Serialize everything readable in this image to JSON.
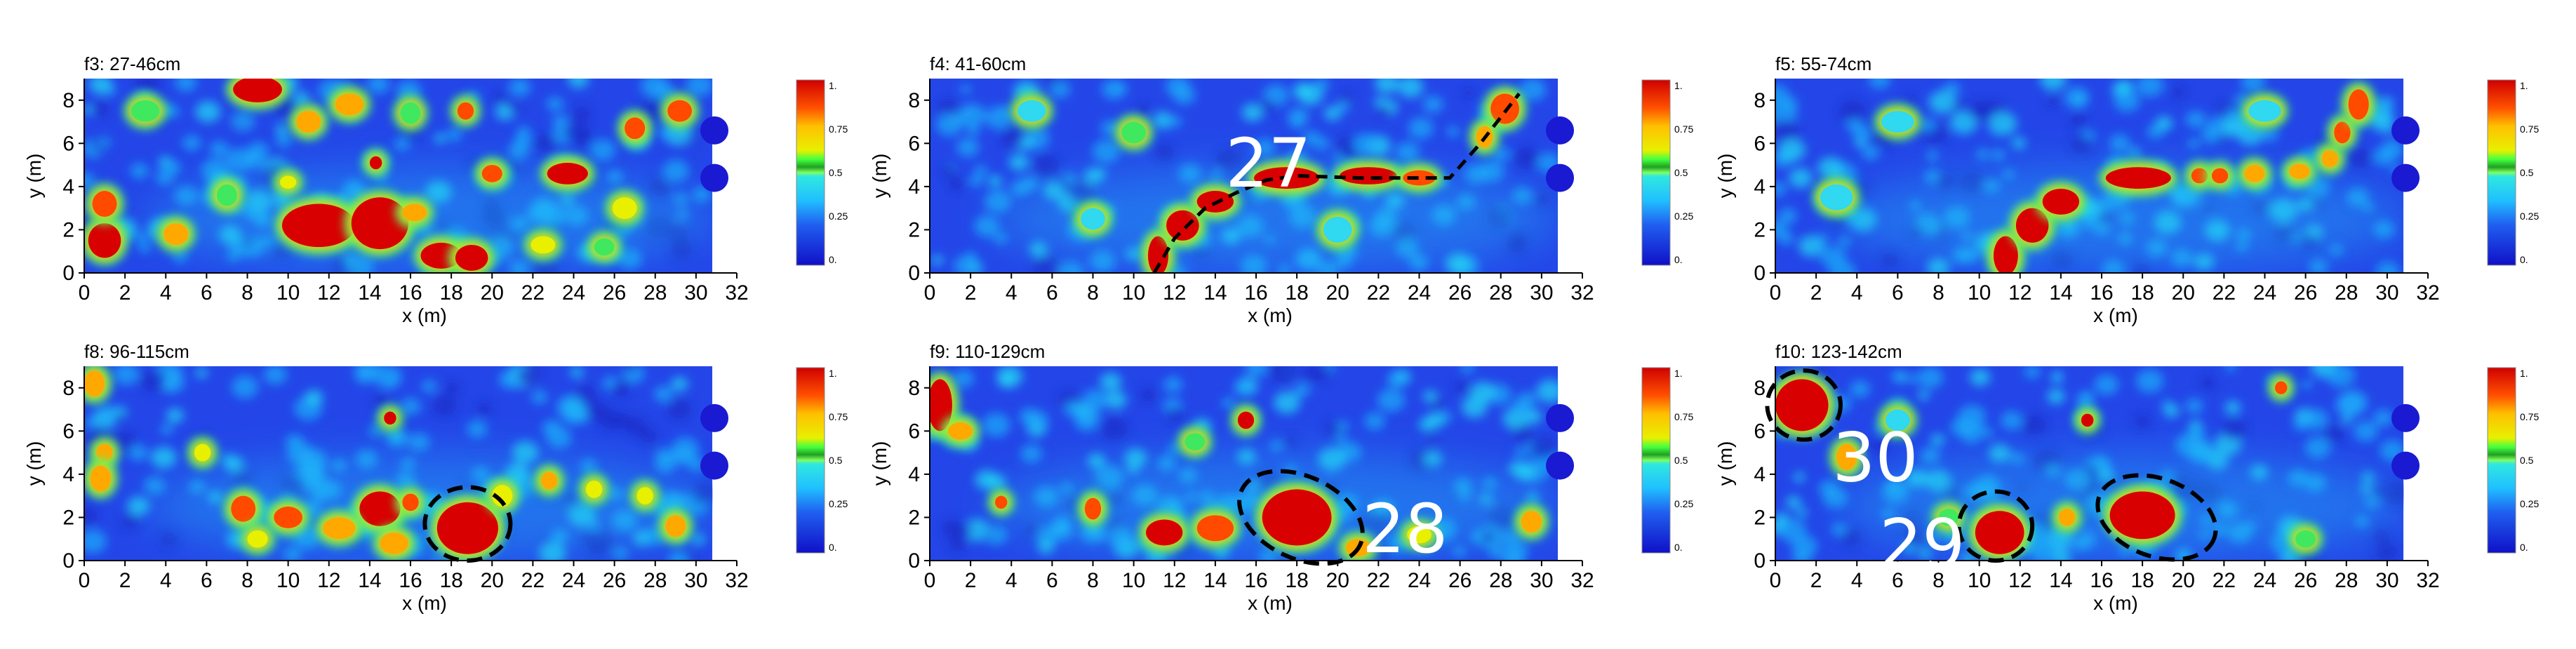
{
  "figure": {
    "panels": [
      {
        "id": "f3",
        "title": "f3: 27-46cm",
        "annotations": [],
        "ellipses": [],
        "dashed_path": [],
        "hotspots": [
          [
            1,
            1.5,
            0.8,
            0.8,
            0.9
          ],
          [
            1,
            3.2,
            0.6,
            0.6,
            0.8
          ],
          [
            4.5,
            1.8,
            0.6,
            0.5,
            0.7
          ],
          [
            8.5,
            8.5,
            1.2,
            0.6,
            0.9
          ],
          [
            11,
            7,
            0.6,
            0.5,
            0.7
          ],
          [
            11.5,
            2.2,
            1.8,
            1.0,
            0.95
          ],
          [
            14.5,
            2.3,
            1.4,
            1.2,
            0.95
          ],
          [
            13,
            7.8,
            0.7,
            0.5,
            0.75
          ],
          [
            17.5,
            0.8,
            1.0,
            0.6,
            0.9
          ],
          [
            19,
            0.7,
            0.8,
            0.6,
            0.9
          ],
          [
            18.7,
            7.5,
            0.4,
            0.4,
            0.85
          ],
          [
            20,
            4.6,
            0.5,
            0.4,
            0.85
          ],
          [
            23.7,
            4.6,
            1.0,
            0.5,
            0.95
          ],
          [
            14.3,
            5.1,
            0.3,
            0.3,
            0.9
          ],
          [
            27,
            6.7,
            0.5,
            0.5,
            0.8
          ],
          [
            29.2,
            7.5,
            0.6,
            0.5,
            0.85
          ],
          [
            16.2,
            2.8,
            0.6,
            0.4,
            0.75
          ],
          [
            10,
            4.2,
            0.4,
            0.3,
            0.6
          ],
          [
            22.5,
            1.3,
            0.6,
            0.4,
            0.6
          ],
          [
            26.5,
            3,
            0.6,
            0.5,
            0.6
          ],
          [
            7,
            3.6,
            0.5,
            0.5,
            0.55
          ],
          [
            16,
            7.4,
            0.5,
            0.5,
            0.55
          ],
          [
            3,
            7.5,
            0.7,
            0.5,
            0.5
          ],
          [
            25.5,
            1.2,
            0.5,
            0.4,
            0.55
          ]
        ]
      },
      {
        "id": "f4",
        "title": "f4: 41-60cm",
        "annotations": [
          {
            "text": "27",
            "x": 14.5,
            "y": 5.1
          }
        ],
        "ellipses": [],
        "dashed_path": [
          [
            11,
            0
          ],
          [
            12,
            1.6
          ],
          [
            13.5,
            3
          ],
          [
            15,
            3.7
          ],
          [
            16.5,
            4.3
          ],
          [
            18,
            4.5
          ],
          [
            21,
            4.4
          ],
          [
            25.5,
            4.4
          ],
          [
            27,
            6
          ],
          [
            28.9,
            8.3
          ]
        ],
        "hotspots": [
          [
            11.2,
            0.8,
            0.5,
            0.9,
            0.95
          ],
          [
            12.4,
            2.2,
            0.8,
            0.7,
            0.95
          ],
          [
            14,
            3.3,
            0.9,
            0.5,
            0.9
          ],
          [
            17.5,
            4.4,
            1.6,
            0.5,
            0.98
          ],
          [
            21.5,
            4.5,
            1.4,
            0.4,
            0.95
          ],
          [
            24,
            4.4,
            0.8,
            0.35,
            0.85
          ],
          [
            28.2,
            7.6,
            0.7,
            0.7,
            0.85
          ],
          [
            27.2,
            6.3,
            0.4,
            0.5,
            0.7
          ],
          [
            10,
            6.5,
            0.6,
            0.5,
            0.5
          ],
          [
            5,
            7.5,
            0.7,
            0.5,
            0.45
          ],
          [
            20,
            2,
            0.7,
            0.6,
            0.45
          ],
          [
            8,
            2.5,
            0.6,
            0.5,
            0.45
          ]
        ]
      },
      {
        "id": "f5",
        "title": "f5: 55-74cm",
        "annotations": [],
        "ellipses": [],
        "dashed_path": [],
        "hotspots": [
          [
            11.3,
            0.8,
            0.6,
            0.9,
            0.95
          ],
          [
            12.6,
            2.2,
            0.8,
            0.8,
            0.95
          ],
          [
            14,
            3.3,
            0.9,
            0.6,
            0.95
          ],
          [
            17.8,
            4.4,
            1.6,
            0.5,
            0.98
          ],
          [
            20.8,
            4.5,
            0.4,
            0.35,
            0.8
          ],
          [
            21.8,
            4.5,
            0.4,
            0.35,
            0.85
          ],
          [
            23.5,
            4.6,
            0.5,
            0.4,
            0.75
          ],
          [
            25.7,
            4.7,
            0.5,
            0.35,
            0.75
          ],
          [
            27.2,
            5.3,
            0.4,
            0.4,
            0.75
          ],
          [
            27.8,
            6.5,
            0.4,
            0.5,
            0.8
          ],
          [
            28.6,
            7.8,
            0.5,
            0.7,
            0.85
          ],
          [
            24,
            7.5,
            0.8,
            0.5,
            0.45
          ],
          [
            6,
            7,
            0.8,
            0.5,
            0.45
          ],
          [
            3,
            3.5,
            0.8,
            0.6,
            0.45
          ]
        ]
      },
      {
        "id": "f8",
        "title": "f8: 96-115cm",
        "annotations": [],
        "ellipses": [
          {
            "cx": 18.8,
            "cy": 1.7,
            "rx": 2.1,
            "ry": 1.7,
            "rot": 0
          }
        ],
        "dashed_path": [],
        "hotspots": [
          [
            18.8,
            1.5,
            1.5,
            1.2,
            0.98
          ],
          [
            14.5,
            2.4,
            1.0,
            0.8,
            0.9
          ],
          [
            7.8,
            2.4,
            0.6,
            0.6,
            0.85
          ],
          [
            10,
            2,
            0.7,
            0.5,
            0.8
          ],
          [
            12.5,
            1.5,
            0.8,
            0.5,
            0.75
          ],
          [
            15.2,
            0.8,
            0.7,
            0.5,
            0.75
          ],
          [
            16,
            2.7,
            0.4,
            0.4,
            0.8
          ],
          [
            15,
            6.6,
            0.3,
            0.3,
            0.95
          ],
          [
            1,
            5,
            0.4,
            0.4,
            0.75
          ],
          [
            0.8,
            3.8,
            0.5,
            0.6,
            0.75
          ],
          [
            0.5,
            8.2,
            0.5,
            0.6,
            0.7
          ],
          [
            22.8,
            3.7,
            0.4,
            0.4,
            0.75
          ],
          [
            29,
            1.6,
            0.5,
            0.5,
            0.7
          ],
          [
            27.5,
            3,
            0.4,
            0.4,
            0.65
          ],
          [
            25,
            3.3,
            0.4,
            0.4,
            0.6
          ],
          [
            5.8,
            5,
            0.4,
            0.4,
            0.6
          ],
          [
            8.5,
            1,
            0.5,
            0.4,
            0.6
          ],
          [
            20.5,
            3,
            0.5,
            0.5,
            0.6
          ]
        ]
      },
      {
        "id": "f9",
        "title": "f9: 110-129cm",
        "annotations": [
          {
            "text": "28",
            "x": 21.2,
            "y": 1.5
          }
        ],
        "ellipses": [
          {
            "cx": 18.2,
            "cy": 2.0,
            "rx": 3.2,
            "ry": 1.9,
            "rot": 25
          }
        ],
        "dashed_path": [],
        "hotspots": [
          [
            18,
            2.0,
            1.7,
            1.3,
            0.98
          ],
          [
            11.5,
            1.3,
            0.9,
            0.6,
            0.9
          ],
          [
            14,
            1.5,
            0.9,
            0.6,
            0.85
          ],
          [
            8,
            2.4,
            0.4,
            0.5,
            0.85
          ],
          [
            15.5,
            6.5,
            0.4,
            0.4,
            0.95
          ],
          [
            0.5,
            7.2,
            0.6,
            1.2,
            0.95
          ],
          [
            3.5,
            2.7,
            0.3,
            0.3,
            0.8
          ],
          [
            29.5,
            1.8,
            0.5,
            0.5,
            0.75
          ],
          [
            21,
            0.6,
            0.6,
            0.4,
            0.7
          ],
          [
            24,
            1.2,
            0.6,
            0.4,
            0.6
          ],
          [
            1.5,
            6,
            0.6,
            0.4,
            0.7
          ],
          [
            13,
            5.5,
            0.5,
            0.4,
            0.5
          ]
        ]
      },
      {
        "id": "f10",
        "title": "f10: 123-142cm",
        "annotations": [
          {
            "text": "30",
            "x": 2.8,
            "y": 4.8
          },
          {
            "text": "29",
            "x": 5.1,
            "y": 0.8
          }
        ],
        "ellipses": [
          {
            "cx": 1.4,
            "cy": 7.2,
            "rx": 1.8,
            "ry": 1.6,
            "rot": 0
          },
          {
            "cx": 10.8,
            "cy": 1.6,
            "rx": 1.8,
            "ry": 1.6,
            "rot": 0
          },
          {
            "cx": 18.7,
            "cy": 2.0,
            "rx": 3.0,
            "ry": 1.8,
            "rot": 20
          }
        ],
        "dashed_path": [],
        "hotspots": [
          [
            1.3,
            7.2,
            1.3,
            1.2,
            0.98
          ],
          [
            11,
            1.3,
            1.2,
            1.0,
            0.98
          ],
          [
            18,
            2.1,
            1.6,
            1.1,
            0.98
          ],
          [
            15.3,
            6.5,
            0.3,
            0.3,
            0.9
          ],
          [
            3.5,
            4.8,
            0.5,
            0.6,
            0.75
          ],
          [
            24.8,
            8,
            0.3,
            0.3,
            0.8
          ],
          [
            14.3,
            2.0,
            0.4,
            0.4,
            0.75
          ],
          [
            8.5,
            2,
            0.5,
            0.4,
            0.55
          ],
          [
            26,
            1,
            0.5,
            0.4,
            0.5
          ],
          [
            6,
            6.5,
            0.6,
            0.5,
            0.45
          ]
        ]
      }
    ],
    "x_ticks": [
      "0",
      "2",
      "4",
      "6",
      "8",
      "10",
      "12",
      "14",
      "16",
      "18",
      "20",
      "22",
      "24",
      "26",
      "28",
      "30",
      "32"
    ],
    "y_ticks": [
      "0",
      "2",
      "4",
      "6",
      "8"
    ],
    "x_label": "x (m)",
    "y_label": "y (m)",
    "colorbar_ticks": [
      "1.",
      "0.75",
      "0.5",
      "0.25",
      "0."
    ],
    "colormap": [
      "#1414d2",
      "#2864f0",
      "#1ec8ff",
      "#4af4c8",
      "#e6f000",
      "#ffb400",
      "#ff4600",
      "#d20000"
    ]
  }
}
